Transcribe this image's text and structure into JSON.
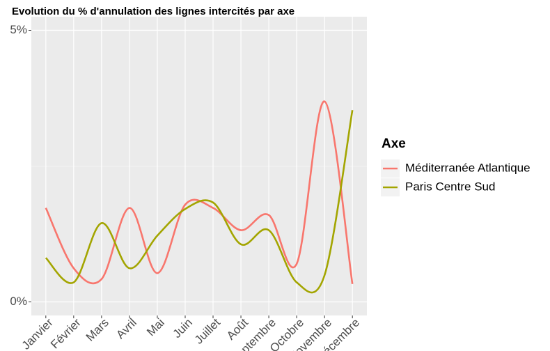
{
  "chart_data": {
    "type": "line",
    "title": "Evolution du % d'annulation des lignes intercités par axe",
    "categories": [
      "Janvier",
      "Février",
      "Mars",
      "Avril",
      "Mai",
      "Juin",
      "Juillet",
      "Août",
      "Septembre",
      "Octobre",
      "Novembre",
      "Décembre"
    ],
    "series": [
      {
        "name": "Méditerranée Atlantique",
        "color": "#F8766D",
        "values": [
          1.73,
          0.62,
          0.42,
          1.73,
          0.53,
          1.79,
          1.73,
          1.32,
          1.6,
          0.7,
          3.69,
          0.33
        ]
      },
      {
        "name": "Paris Centre Sud",
        "color": "#A3A500",
        "values": [
          0.81,
          0.36,
          1.45,
          0.62,
          1.22,
          1.71,
          1.83,
          1.06,
          1.32,
          0.36,
          0.49,
          3.53
        ]
      }
    ],
    "ylim": [
      -0.25,
      5.25
    ],
    "yticks": [
      {
        "value": 0,
        "label": "0%"
      },
      {
        "value": 5,
        "label": "5%"
      }
    ],
    "yminor": [
      2.5
    ],
    "legend_title": "Axe",
    "legend": "right",
    "grid": true
  }
}
